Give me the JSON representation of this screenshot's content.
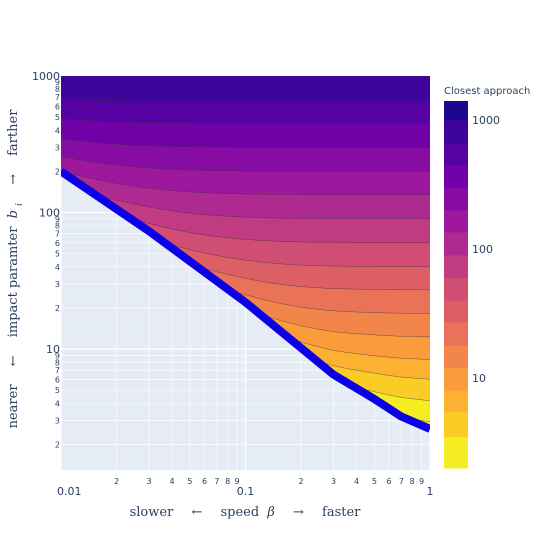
{
  "chart_data": {
    "type": "heatmap",
    "subtype": "filled-contour",
    "x_axis": {
      "scale": "log",
      "range": [
        0.01,
        1
      ],
      "major_ticks": [
        {
          "v": 0.01,
          "label": "0.01"
        },
        {
          "v": 0.1,
          "label": "0.1"
        },
        {
          "v": 1,
          "label": "1"
        }
      ],
      "minor_labels": [
        "2",
        "3",
        "4",
        "5",
        "6",
        "7",
        "8",
        "9"
      ],
      "title": {
        "left_word": "slower",
        "left_arrow": "←",
        "var": "speed",
        "symbol": "β",
        "right_arrow": "→",
        "right_word": "faster"
      }
    },
    "y_axis": {
      "scale": "log",
      "range": [
        1.3,
        1000
      ],
      "major_ticks": [
        {
          "v": 10,
          "label": "10"
        },
        {
          "v": 100,
          "label": "100"
        },
        {
          "v": 1000,
          "label": "1000"
        }
      ],
      "minor_labels": [
        "2",
        "3",
        "4",
        "5",
        "6",
        "7",
        "8",
        "9"
      ],
      "title": {
        "left_word": "nearer",
        "left_arrow": "←",
        "var": "impact paramter",
        "symbol": "b",
        "subscript": "i",
        "right_arrow": "→",
        "right_word": "farther"
      }
    },
    "boundary": {
      "color": "#0b00e6",
      "points": [
        [
          0.01,
          200
        ],
        [
          0.03,
          73
        ],
        [
          0.1,
          22
        ],
        [
          0.3,
          6.5
        ],
        [
          0.5,
          4.3
        ],
        [
          0.7,
          3.2
        ],
        [
          1.0,
          2.6
        ]
      ]
    },
    "capture_region_color": "#e5ecf6",
    "contour_levels": [
      2.1,
      3.5,
      5.5,
      8,
      12,
      18,
      27,
      40,
      60,
      90,
      135,
      200,
      300,
      450,
      650,
      1000
    ],
    "colorscale": [
      "#f0f921",
      "#fdca26",
      "#fb9f3a",
      "#ed7953",
      "#d8576b",
      "#bd3786",
      "#9c179e",
      "#7201a8",
      "#46039f",
      "#0d0887"
    ],
    "colorbar": {
      "title": "Closest approach",
      "scale": "log",
      "range": [
        2,
        1400
      ],
      "ticks": [
        {
          "v": 10,
          "label": "10"
        },
        {
          "v": 100,
          "label": "100"
        },
        {
          "v": 1000,
          "label": "1000"
        }
      ]
    },
    "grid": true
  }
}
